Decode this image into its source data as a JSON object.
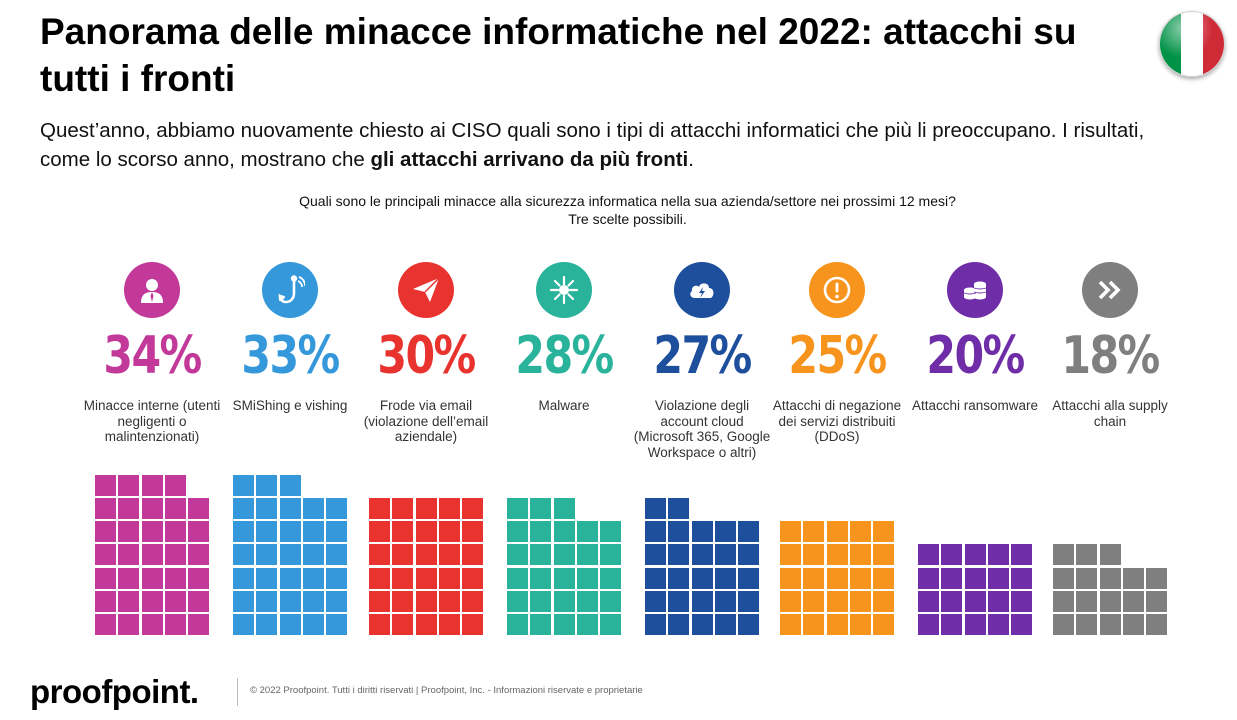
{
  "header": {
    "title": "Panorama delle minacce informatiche nel 2022: attacchi su tutti i fronti",
    "intro_plain": "Quest’anno, abbiamo nuovamente chiesto ai CISO quali sono i tipi di attacchi informatici che più li preoccupano. I risultati, come lo scorso anno, mostrano che ",
    "intro_bold": "gli attacchi arrivano da più fronti",
    "intro_end": ".",
    "flag_colors": [
      "#009246",
      "#ffffff",
      "#ce2b37"
    ]
  },
  "chart_data": {
    "type": "bar",
    "title": "Quali sono le principali minacce alla sicurezza informatica nella sua azienda/settore nei prossimi 12 mesi?",
    "subtitle": "Tre scelte possibili.",
    "unit": "%",
    "categories": [
      "Minacce interne (utenti negligenti o malintenzionati)",
      "SMiShing e vishing",
      "Frode via email (violazione dell’email aziendale)",
      "Malware",
      "Violazione degli account cloud (Microsoft 365, Google Workspace o altri)",
      "Attacchi di negazione dei servizi distribuiti (DDoS)",
      "Attacchi ransomware",
      "Attacchi alla supply chain"
    ],
    "values": [
      34,
      33,
      30,
      28,
      27,
      25,
      20,
      18
    ],
    "value_labels": [
      "34%",
      "33%",
      "30%",
      "28%",
      "27%",
      "25%",
      "20%",
      "18%"
    ],
    "colors": [
      "#c2399a",
      "#3498db",
      "#e8332e",
      "#2ab39b",
      "#1d4f9c",
      "#f7941d",
      "#6f2da8",
      "#7f7f7f"
    ],
    "icons": [
      "person-icon",
      "fishing-hook-icon",
      "paper-plane-icon",
      "virus-icon",
      "cloud-bolt-icon",
      "alert-icon",
      "coins-icon",
      "double-chevron-icon"
    ],
    "encoding": "waffle"
  },
  "footer": {
    "brand": "proofpoint.",
    "copyright": "© 2022  Proofpoint. Tutti i diritti riservati  |  Proofpoint, Inc. - Informazioni riservate e proprietarie"
  }
}
